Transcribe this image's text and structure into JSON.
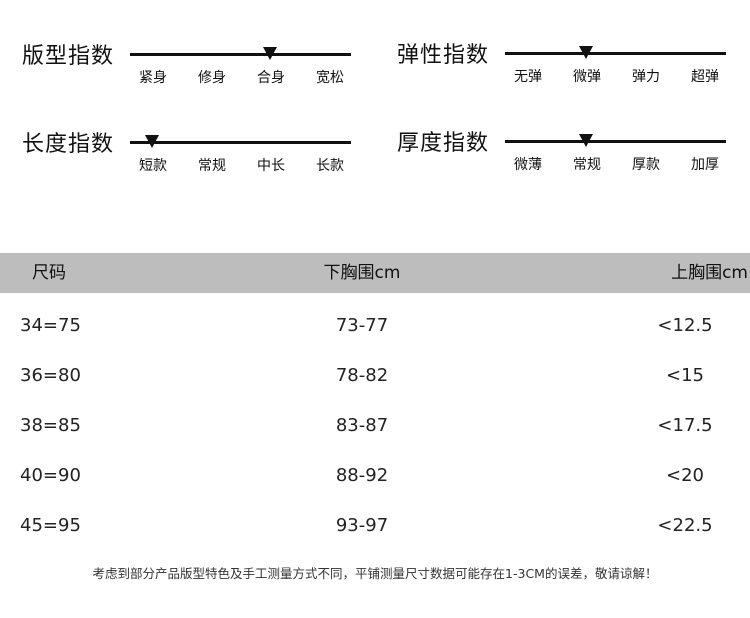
{
  "indices": [
    {
      "title": "版型指数",
      "labels": [
        "紧身",
        "修身",
        "合身",
        "宽松"
      ],
      "level": 2
    },
    {
      "title": "弹性指数",
      "labels": [
        "无弹",
        "微弹",
        "弹力",
        "超弹"
      ],
      "level": 1
    },
    {
      "title": "长度指数",
      "labels": [
        "短款",
        "常规",
        "中长",
        "长款"
      ],
      "level": 0
    },
    {
      "title": "厚度指数",
      "labels": [
        "微薄",
        "常规",
        "厚款",
        "加厚"
      ],
      "level": 1
    }
  ],
  "table": {
    "headers": [
      "尺码",
      "下胸围cm",
      "上胸围cm"
    ],
    "rows": [
      [
        "34=75",
        "73-77",
        "<12.5"
      ],
      [
        "36=80",
        "78-82",
        "<15"
      ],
      [
        "38=85",
        "83-87",
        "<17.5"
      ],
      [
        "40=90",
        "88-92",
        "<20"
      ],
      [
        "45=95",
        "93-97",
        "<22.5"
      ]
    ],
    "header_bg": "#bdbdbd"
  },
  "note": "考虑到部分产品版型特色及手工测量方式不同，平铺测量尺寸数据可能存在1-3CM的误差，敬请谅解！"
}
